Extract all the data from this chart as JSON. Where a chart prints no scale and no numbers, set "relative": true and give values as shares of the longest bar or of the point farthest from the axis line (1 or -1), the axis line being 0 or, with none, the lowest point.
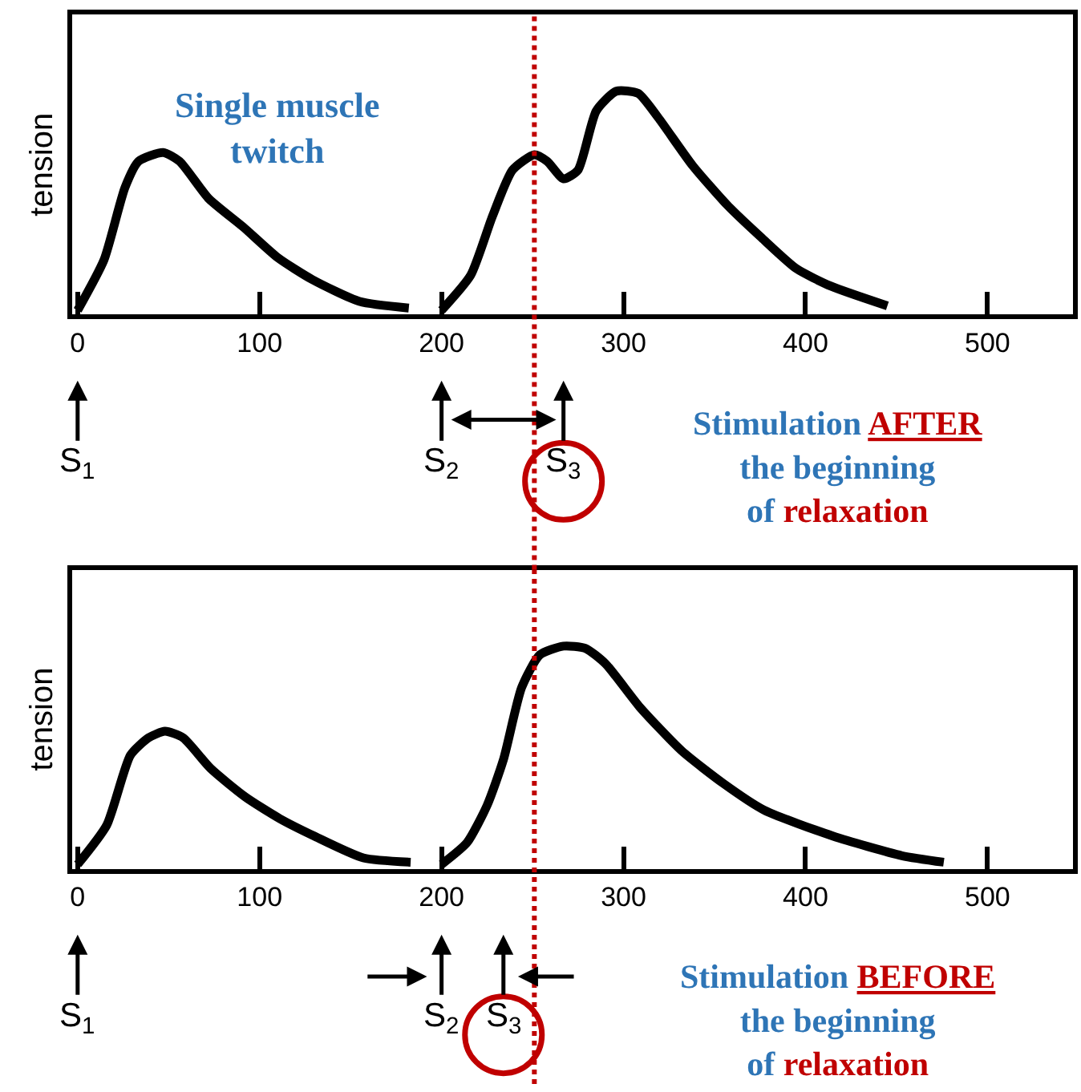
{
  "chart_data": [
    {
      "type": "line",
      "relative": true,
      "ylabel": "tension",
      "tick_labels": "x",
      "xlim": [
        -3,
        547
      ],
      "xticks": [
        0,
        100,
        200,
        300,
        400,
        500
      ],
      "series": [
        {
          "color": "#000000",
          "x": [
            0,
            14.5,
            26,
            33.5,
            47,
            56,
            72,
            91,
            110,
            129,
            155,
            182
          ],
          "values": [
            0,
            0.23,
            0.56,
            0.68,
            0.72,
            0.68,
            0.51,
            0.38,
            0.24,
            0.14,
            0.04,
            0.01
          ]
        },
        {
          "color": "#000000",
          "x": [
            200,
            216,
            228,
            239,
            251,
            258,
            267,
            275,
            285,
            296,
            308,
            319,
            338,
            357,
            376,
            395,
            414,
            445
          ],
          "values": [
            0,
            0.16,
            0.43,
            0.64,
            0.71,
            0.68,
            0.6,
            0.64,
            0.91,
            1.0,
            0.99,
            0.88,
            0.66,
            0.48,
            0.33,
            0.19,
            0.11,
            0.02
          ]
        }
      ],
      "ref_lines": [
        {
          "axis": "x",
          "value": 251,
          "color": "#c00000",
          "line_style": "dotted"
        }
      ],
      "annotations": [
        "Single muscle\ntwitch",
        {
          "text": "S$_{1}$",
          "x": 0
        },
        {
          "text": "S$_{2}$",
          "x": 200
        },
        {
          "text": "S$_{3}$",
          "x": 267
        },
        "Stimulation AFTER\nthe beginning\nof relaxation"
      ]
    },
    {
      "type": "line",
      "relative": true,
      "ylabel": "tension",
      "tick_labels": "x",
      "xlim": [
        -3,
        547
      ],
      "xticks": [
        0,
        100,
        200,
        300,
        400,
        500
      ],
      "series": [
        {
          "color": "#000000",
          "x": [
            0,
            16,
            29,
            39,
            48,
            58,
            73,
            92,
            111,
            130,
            157,
            183
          ],
          "values": [
            0,
            0.18,
            0.5,
            0.58,
            0.61,
            0.58,
            0.44,
            0.31,
            0.21,
            0.13,
            0.03,
            0.01
          ]
        },
        {
          "color": "#000000",
          "x": [
            200,
            214,
            225,
            234,
            244,
            254,
            267,
            279,
            290,
            309,
            332,
            355,
            377,
            415,
            453,
            476
          ],
          "values": [
            0,
            0.1,
            0.27,
            0.48,
            0.81,
            0.96,
            1.0,
            0.99,
            0.92,
            0.72,
            0.52,
            0.37,
            0.25,
            0.13,
            0.04,
            0.01
          ]
        }
      ],
      "ref_lines": [
        {
          "axis": "x",
          "value": 251,
          "color": "#c00000",
          "line_style": "dotted"
        }
      ],
      "annotations": [
        {
          "text": "S$_{1}$",
          "x": 0
        },
        {
          "text": "S$_{2}$",
          "x": 200
        },
        {
          "text": "S$_{3}$",
          "x": 234
        },
        "Stimulation BEFORE\nthe beginning\nof relaxation"
      ]
    }
  ]
}
